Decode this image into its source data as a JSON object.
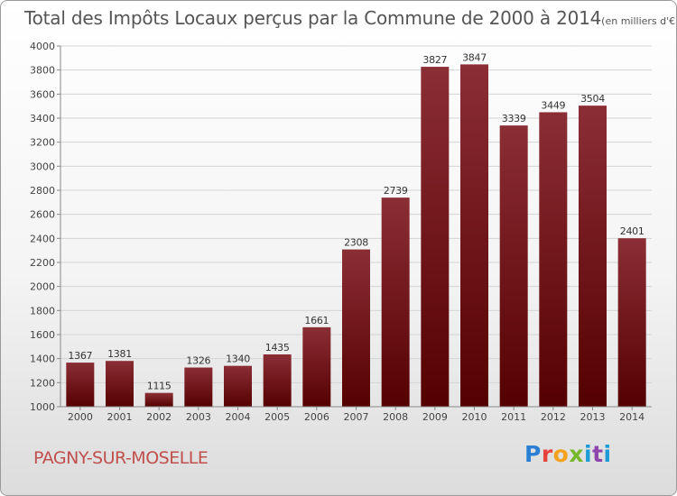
{
  "header": {
    "title": "Total des Impôts Locaux perçus par la Commune de 2000 à 2014",
    "unit_note": "(en milliers d'€)"
  },
  "footer": {
    "commune": "PAGNY-SUR-MOSELLE",
    "logo": "Proxiti"
  },
  "chart_data": {
    "type": "bar",
    "title": "Total des Impôts Locaux perçus par la Commune de 2000 à 2014",
    "xlabel": "",
    "ylabel": "",
    "categories": [
      "2000",
      "2001",
      "2002",
      "2003",
      "2004",
      "2005",
      "2006",
      "2007",
      "2008",
      "2009",
      "2010",
      "2011",
      "2012",
      "2013",
      "2014"
    ],
    "values": [
      1367,
      1381,
      1115,
      1326,
      1340,
      1435,
      1661,
      2308,
      2739,
      3827,
      3847,
      3339,
      3449,
      3504,
      2401
    ],
    "ylim": [
      1000,
      4000
    ],
    "yticks": [
      1000,
      1200,
      1400,
      1600,
      1800,
      2000,
      2200,
      2400,
      2600,
      2800,
      3000,
      3200,
      3400,
      3600,
      3800,
      4000
    ],
    "grid": true,
    "colors": {
      "bar_top": "#8b2e36",
      "bar_bottom": "#550000",
      "grid": "#d4d4d4",
      "axis": "#888888"
    }
  }
}
